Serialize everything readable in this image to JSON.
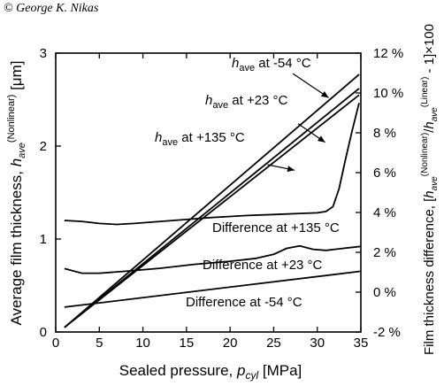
{
  "copyright": "© George K. Nikas",
  "chart_data": {
    "type": "line",
    "xlabel": {
      "main": "Sealed pressure, ",
      "var": "p",
      "sub": "cyl",
      "unit": " [MPa]"
    },
    "ylabel_left": {
      "main": "Average film thickness, ",
      "var": "h",
      "sub": "ave",
      "sup": "(Nonlinear)",
      "unit": " [μm]"
    },
    "ylabel_right": {
      "pre": "Film thickness difference, [",
      "v1": "h",
      "s1": "ave",
      "p1": "(Nonlinear)",
      "slash": "/",
      "v2": "h",
      "s2": "ave",
      "p2": "(Linear)",
      "post": " - 1]×100"
    },
    "xlim": [
      0,
      35
    ],
    "ylim_left": [
      0,
      3
    ],
    "ylim_right": [
      -2,
      12
    ],
    "x_ticks": [
      "0",
      "5",
      "10",
      "15",
      "20",
      "25",
      "30",
      "35"
    ],
    "y_ticks_left": [
      "0",
      "1",
      "2",
      "3"
    ],
    "y_ticks_right": [
      "-2 %",
      "0 %",
      "2 %",
      "4 %",
      "6 %",
      "8 %",
      "10 %",
      "12 %"
    ],
    "grid": false,
    "color": "#000000",
    "series": [
      {
        "axis": "left",
        "points": [
          [
            1,
            0.05
          ],
          [
            34.8,
            2.77
          ]
        ]
      },
      {
        "axis": "left",
        "points": [
          [
            1,
            0.05
          ],
          [
            34.8,
            2.62
          ]
        ]
      },
      {
        "axis": "left",
        "points": [
          [
            1,
            0.05
          ],
          [
            34.8,
            2.55
          ]
        ]
      },
      {
        "axis": "right",
        "points": [
          [
            1,
            3.6
          ],
          [
            3,
            3.55
          ],
          [
            5,
            3.45
          ],
          [
            7,
            3.4
          ],
          [
            9,
            3.45
          ],
          [
            12,
            3.55
          ],
          [
            15,
            3.65
          ],
          [
            18,
            3.75
          ],
          [
            22,
            3.85
          ],
          [
            25,
            3.9
          ],
          [
            28,
            3.95
          ],
          [
            30,
            3.98
          ],
          [
            31,
            4.05
          ],
          [
            31.8,
            4.3
          ],
          [
            32.5,
            5.2
          ],
          [
            33.2,
            6.6
          ],
          [
            34,
            8.1
          ],
          [
            34.8,
            9.5
          ]
        ]
      },
      {
        "axis": "right",
        "points": [
          [
            1,
            1.18
          ],
          [
            3,
            0.95
          ],
          [
            5,
            0.95
          ],
          [
            8,
            1.05
          ],
          [
            12,
            1.2
          ],
          [
            16,
            1.4
          ],
          [
            20,
            1.55
          ],
          [
            23,
            1.7
          ],
          [
            25,
            1.9
          ],
          [
            26.5,
            2.2
          ],
          [
            28,
            2.32
          ],
          [
            29.5,
            2.15
          ],
          [
            31,
            2.1
          ],
          [
            33,
            2.2
          ],
          [
            35,
            2.3
          ]
        ]
      },
      {
        "axis": "right",
        "points": [
          [
            1,
            -0.75
          ],
          [
            35,
            1.05
          ]
        ]
      }
    ],
    "annotations": [
      {
        "var": "h",
        "sub": "ave",
        "text": " at -54 °C",
        "from": [
          27.2,
          2.78
        ],
        "to": [
          31.3,
          2.52
        ]
      },
      {
        "var": "h",
        "sub": "ave",
        "text": " at +23 °C",
        "from": [
          27.8,
          2.24
        ],
        "to": [
          30.9,
          2.04
        ]
      },
      {
        "var": "h",
        "sub": "ave",
        "text": " at +135 °C",
        "from": [
          24.3,
          1.8
        ],
        "to": [
          27.4,
          1.74
        ]
      },
      {
        "text": "Difference at +135 °C"
      },
      {
        "text": "Difference at +23 °C"
      },
      {
        "text": "Difference at -54 °C"
      }
    ]
  }
}
